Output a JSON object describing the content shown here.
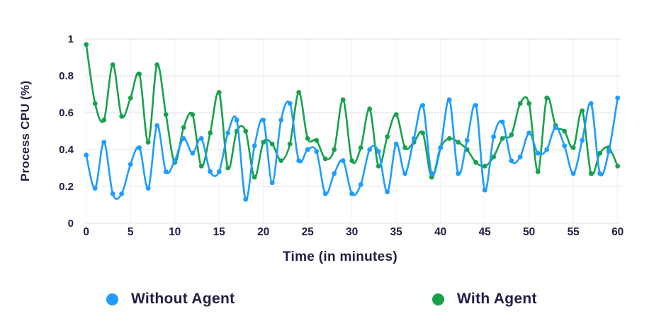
{
  "chart_data": {
    "type": "line",
    "title": "",
    "xlabel": "Time (in minutes)",
    "ylabel": "Process CPU (%)",
    "xlim": [
      0,
      60
    ],
    "ylim": [
      0,
      1
    ],
    "grid": true,
    "legend_position": "bottom",
    "x_tick_values": [
      0,
      5,
      10,
      15,
      20,
      25,
      30,
      35,
      40,
      45,
      50,
      55,
      60
    ],
    "x_tick_labels": [
      "0",
      "5",
      "10",
      "15",
      "20",
      "25",
      "30",
      "35",
      "40",
      "45",
      "50",
      "55",
      "60"
    ],
    "y_tick_values": [
      0,
      0.2,
      0.4,
      0.6,
      0.8,
      1
    ],
    "y_tick_labels": [
      "0",
      "0.2",
      "0.4",
      "0.6",
      "0.8",
      "1"
    ],
    "x": [
      0,
      1,
      2,
      3,
      4,
      5,
      6,
      7,
      8,
      9,
      10,
      11,
      12,
      13,
      14,
      15,
      16,
      17,
      18,
      19,
      20,
      21,
      22,
      23,
      24,
      25,
      26,
      27,
      28,
      29,
      30,
      31,
      32,
      33,
      34,
      35,
      36,
      37,
      38,
      39,
      40,
      41,
      42,
      43,
      44,
      45,
      46,
      47,
      48,
      49,
      50,
      51,
      52,
      53,
      54,
      55,
      56,
      57,
      58,
      59,
      60
    ],
    "series": [
      {
        "name": "Without Agent",
        "color": "#1e9dfe",
        "values": [
          0.37,
          0.19,
          0.44,
          0.16,
          0.16,
          0.32,
          0.41,
          0.19,
          0.53,
          0.28,
          0.34,
          0.46,
          0.38,
          0.46,
          0.28,
          0.28,
          0.49,
          0.56,
          0.13,
          0.42,
          0.56,
          0.22,
          0.56,
          0.65,
          0.34,
          0.4,
          0.39,
          0.16,
          0.27,
          0.34,
          0.16,
          0.21,
          0.4,
          0.39,
          0.17,
          0.43,
          0.27,
          0.46,
          0.64,
          0.27,
          0.41,
          0.67,
          0.27,
          0.45,
          0.64,
          0.18,
          0.47,
          0.55,
          0.34,
          0.36,
          0.49,
          0.38,
          0.4,
          0.52,
          0.42,
          0.27,
          0.45,
          0.65,
          0.27,
          0.39,
          0.68
        ]
      },
      {
        "name": "With Agent",
        "color": "#16a24c",
        "values": [
          0.97,
          0.65,
          0.56,
          0.86,
          0.58,
          0.68,
          0.81,
          0.44,
          0.86,
          0.59,
          0.33,
          0.52,
          0.59,
          0.31,
          0.49,
          0.71,
          0.3,
          0.5,
          0.5,
          0.25,
          0.44,
          0.43,
          0.34,
          0.43,
          0.71,
          0.46,
          0.45,
          0.35,
          0.4,
          0.67,
          0.34,
          0.41,
          0.62,
          0.31,
          0.47,
          0.59,
          0.41,
          0.44,
          0.49,
          0.25,
          0.41,
          0.46,
          0.44,
          0.4,
          0.33,
          0.31,
          0.36,
          0.46,
          0.48,
          0.65,
          0.65,
          0.28,
          0.68,
          0.53,
          0.5,
          0.41,
          0.61,
          0.27,
          0.38,
          0.41,
          0.31
        ]
      }
    ]
  },
  "colors": {
    "text": "#221d42",
    "grid_horizontal": "#e7e7ed",
    "grid_vertical": "#f1f1f5",
    "background": "#ffffff"
  }
}
